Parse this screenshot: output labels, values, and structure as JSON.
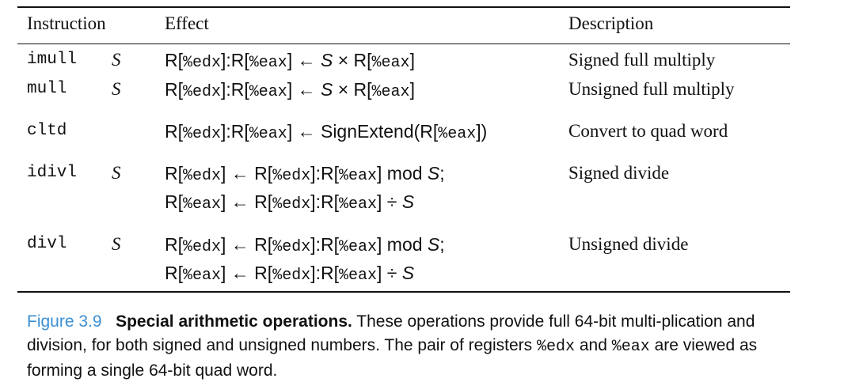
{
  "table": {
    "headers": {
      "instruction": "Instruction",
      "effect": "Effect",
      "description": "Description"
    },
    "rows": [
      {
        "instruction": "imull",
        "operand": "S",
        "effect_lines": [
          "R[%edx]:R[%eax] ← S × R[%eax]"
        ],
        "description": "Signed full multiply"
      },
      {
        "instruction": "mull",
        "operand": "S",
        "effect_lines": [
          "R[%edx]:R[%eax] ← S × R[%eax]"
        ],
        "description": "Unsigned full multiply"
      },
      {
        "instruction": "cltd",
        "operand": "",
        "effect_lines": [
          "R[%edx]:R[%eax] ← SignExtend(R[%eax])"
        ],
        "description": "Convert to quad word"
      },
      {
        "instruction": "idivl",
        "operand": "S",
        "effect_lines": [
          "R[%edx] ← R[%edx]:R[%eax] mod S;",
          "R[%eax] ← R[%edx]:R[%eax] ÷ S"
        ],
        "description": "Signed divide"
      },
      {
        "instruction": "divl",
        "operand": "S",
        "effect_lines": [
          "R[%edx] ← R[%edx]:R[%eax] mod S;",
          "R[%eax] ← R[%edx]:R[%eax] ÷ S"
        ],
        "description": "Unsigned divide"
      }
    ]
  },
  "caption": {
    "label": "Figure 3.9",
    "title": "Special arithmetic operations.",
    "text_1": " These operations provide full 64-bit multi-plication and division, for both signed and unsigned numbers. The pair of registers ",
    "reg_1": "%edx",
    "text_2": " and ",
    "reg_2": "%eax",
    "text_3": " are viewed as forming a single 64-bit quad word."
  }
}
